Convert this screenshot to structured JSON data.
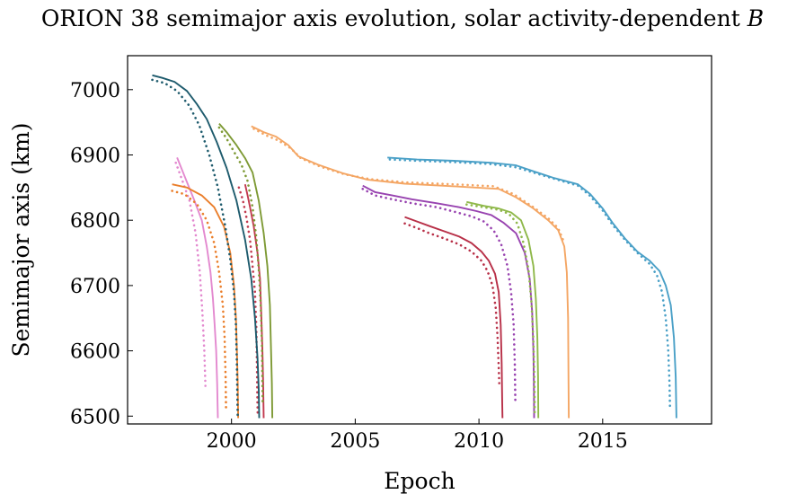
{
  "chart_data": {
    "type": "line",
    "title_main": "ORION 38 semimajor axis evolution, solar activity-dependent ",
    "title_var": "B",
    "xlabel": "Epoch",
    "ylabel": "Semimajor axis (km)",
    "xlim": [
      1995.8,
      2019.4
    ],
    "ylim": [
      6488,
      7052
    ],
    "xticks": [
      2000,
      2005,
      2010,
      2015
    ],
    "yticks": [
      6500,
      6600,
      6700,
      6800,
      6900,
      7000
    ],
    "grid": false,
    "legend": "none",
    "series": [
      {
        "name": "pink-solid",
        "color": "#e389cf",
        "style": "solid",
        "points": [
          [
            1997.8,
            6896
          ],
          [
            1998.1,
            6868
          ],
          [
            1998.5,
            6830
          ],
          [
            1998.8,
            6800
          ],
          [
            1999.0,
            6760
          ],
          [
            1999.15,
            6720
          ],
          [
            1999.25,
            6680
          ],
          [
            1999.32,
            6640
          ],
          [
            1999.38,
            6600
          ],
          [
            1999.42,
            6550
          ],
          [
            1999.45,
            6497
          ]
        ]
      },
      {
        "name": "pink-dotted",
        "color": "#e389cf",
        "style": "dotted",
        "points": [
          [
            1997.75,
            6888
          ],
          [
            1998.0,
            6862
          ],
          [
            1998.3,
            6830
          ],
          [
            1998.55,
            6780
          ],
          [
            1998.72,
            6720
          ],
          [
            1998.82,
            6660
          ],
          [
            1998.9,
            6600
          ],
          [
            1998.95,
            6540
          ]
        ]
      },
      {
        "name": "orange-solid",
        "color": "#ea7e2b",
        "style": "solid",
        "points": [
          [
            1997.6,
            6855
          ],
          [
            1998.2,
            6850
          ],
          [
            1998.8,
            6838
          ],
          [
            1999.3,
            6820
          ],
          [
            1999.7,
            6790
          ],
          [
            1999.95,
            6750
          ],
          [
            2000.1,
            6700
          ],
          [
            2000.18,
            6650
          ],
          [
            2000.22,
            6600
          ],
          [
            2000.25,
            6550
          ],
          [
            2000.27,
            6497
          ]
        ]
      },
      {
        "name": "orange-dotted",
        "color": "#ea7e2b",
        "style": "dotted",
        "points": [
          [
            1997.6,
            6845
          ],
          [
            1998.1,
            6840
          ],
          [
            1998.6,
            6825
          ],
          [
            1999.0,
            6800
          ],
          [
            1999.3,
            6765
          ],
          [
            1999.5,
            6720
          ],
          [
            1999.65,
            6670
          ],
          [
            1999.72,
            6620
          ],
          [
            1999.76,
            6560
          ],
          [
            1999.78,
            6510
          ]
        ]
      },
      {
        "name": "red-solid",
        "color": "#c23a4f",
        "style": "solid",
        "points": [
          [
            2000.55,
            6855
          ],
          [
            2000.65,
            6838
          ],
          [
            2000.75,
            6820
          ],
          [
            2000.9,
            6790
          ],
          [
            2001.05,
            6750
          ],
          [
            2001.15,
            6710
          ],
          [
            2001.2,
            6660
          ],
          [
            2001.25,
            6600
          ],
          [
            2001.28,
            6550
          ],
          [
            2001.3,
            6497
          ]
        ]
      },
      {
        "name": "red-dotted",
        "color": "#c23a4f",
        "style": "dotted",
        "points": [
          [
            2000.3,
            6850
          ],
          [
            2000.45,
            6832
          ],
          [
            2000.6,
            6805
          ],
          [
            2000.75,
            6770
          ],
          [
            2000.85,
            6730
          ],
          [
            2000.95,
            6690
          ],
          [
            2001.0,
            6640
          ],
          [
            2001.03,
            6580
          ],
          [
            2001.05,
            6520
          ],
          [
            2001.06,
            6500
          ]
        ]
      },
      {
        "name": "navy-solid",
        "color": "#1e5b6d",
        "style": "solid",
        "points": [
          [
            1996.8,
            7022
          ],
          [
            1997.2,
            7018
          ],
          [
            1997.7,
            7012
          ],
          [
            1998.2,
            6998
          ],
          [
            1998.6,
            6978
          ],
          [
            1999.0,
            6955
          ],
          [
            1999.4,
            6920
          ],
          [
            1999.8,
            6880
          ],
          [
            2000.2,
            6830
          ],
          [
            2000.55,
            6770
          ],
          [
            2000.8,
            6710
          ],
          [
            2000.95,
            6650
          ],
          [
            2001.05,
            6590
          ],
          [
            2001.1,
            6540
          ],
          [
            2001.12,
            6497
          ]
        ]
      },
      {
        "name": "navy-dotted",
        "color": "#1e5b6d",
        "style": "dotted",
        "points": [
          [
            1996.8,
            7015
          ],
          [
            1997.3,
            7010
          ],
          [
            1997.8,
            6998
          ],
          [
            1998.3,
            6975
          ],
          [
            1998.7,
            6945
          ],
          [
            1999.1,
            6900
          ],
          [
            1999.45,
            6850
          ],
          [
            1999.75,
            6790
          ],
          [
            1999.95,
            6740
          ],
          [
            2000.1,
            6690
          ],
          [
            2000.18,
            6640
          ],
          [
            2000.22,
            6580
          ],
          [
            2000.24,
            6520
          ],
          [
            2000.25,
            6500
          ]
        ]
      },
      {
        "name": "olive-solid",
        "color": "#7e9a35",
        "style": "solid",
        "points": [
          [
            1999.5,
            6948
          ],
          [
            1999.8,
            6935
          ],
          [
            2000.2,
            6915
          ],
          [
            2000.55,
            6895
          ],
          [
            2000.85,
            6873
          ],
          [
            2001.1,
            6830
          ],
          [
            2001.3,
            6780
          ],
          [
            2001.45,
            6730
          ],
          [
            2001.55,
            6670
          ],
          [
            2001.6,
            6600
          ],
          [
            2001.63,
            6550
          ],
          [
            2001.65,
            6497
          ]
        ]
      },
      {
        "name": "olive-dotted",
        "color": "#7e9a35",
        "style": "dotted",
        "points": [
          [
            1999.5,
            6942
          ],
          [
            1999.8,
            6925
          ],
          [
            2000.1,
            6905
          ],
          [
            2000.4,
            6885
          ],
          [
            2000.65,
            6860
          ],
          [
            2000.85,
            6820
          ],
          [
            2001.0,
            6775
          ],
          [
            2001.1,
            6725
          ],
          [
            2001.18,
            6670
          ],
          [
            2001.23,
            6610
          ],
          [
            2001.25,
            6550
          ],
          [
            2001.26,
            6520
          ]
        ]
      },
      {
        "name": "peach-solid",
        "color": "#f4a664",
        "style": "solid",
        "points": [
          [
            2000.8,
            6944
          ],
          [
            2001.3,
            6935
          ],
          [
            2001.8,
            6928
          ],
          [
            2002.3,
            6915
          ],
          [
            2002.7,
            6898
          ],
          [
            2003.5,
            6885
          ],
          [
            2004.5,
            6872
          ],
          [
            2005.5,
            6862
          ],
          [
            2007.0,
            6856
          ],
          [
            2009.0,
            6852
          ],
          [
            2010.8,
            6848
          ],
          [
            2011.5,
            6835
          ],
          [
            2012.2,
            6818
          ],
          [
            2012.8,
            6800
          ],
          [
            2013.2,
            6785
          ],
          [
            2013.45,
            6760
          ],
          [
            2013.55,
            6720
          ],
          [
            2013.6,
            6650
          ],
          [
            2013.62,
            6550
          ],
          [
            2013.63,
            6497
          ]
        ]
      },
      {
        "name": "peach-dotted",
        "color": "#f4a664",
        "style": "dotted",
        "points": [
          [
            2000.9,
            6940
          ],
          [
            2001.4,
            6930
          ],
          [
            2001.9,
            6922
          ],
          [
            2002.4,
            6910
          ],
          [
            2002.8,
            6895
          ],
          [
            2003.6,
            6882
          ],
          [
            2004.6,
            6870
          ],
          [
            2005.6,
            6863
          ],
          [
            2007.0,
            6858
          ],
          [
            2009.0,
            6855
          ],
          [
            2010.6,
            6852
          ],
          [
            2011.4,
            6840
          ],
          [
            2012.2,
            6820
          ],
          [
            2012.8,
            6803
          ],
          [
            2013.2,
            6788
          ],
          [
            2013.4,
            6770
          ]
        ]
      },
      {
        "name": "blue-solid",
        "color": "#4aa0c7",
        "style": "solid",
        "points": [
          [
            2006.3,
            6896
          ],
          [
            2007.5,
            6893
          ],
          [
            2009.0,
            6891
          ],
          [
            2010.5,
            6888
          ],
          [
            2011.5,
            6884
          ],
          [
            2012.2,
            6875
          ],
          [
            2013.0,
            6865
          ],
          [
            2014.0,
            6855
          ],
          [
            2014.5,
            6840
          ],
          [
            2015.0,
            6818
          ],
          [
            2015.4,
            6796
          ],
          [
            2015.9,
            6772
          ],
          [
            2016.4,
            6752
          ],
          [
            2016.9,
            6738
          ],
          [
            2017.3,
            6722
          ],
          [
            2017.55,
            6700
          ],
          [
            2017.75,
            6670
          ],
          [
            2017.88,
            6620
          ],
          [
            2017.95,
            6560
          ],
          [
            2017.98,
            6497
          ]
        ]
      },
      {
        "name": "blue-dotted",
        "color": "#4aa0c7",
        "style": "dotted",
        "points": [
          [
            2006.4,
            6893
          ],
          [
            2007.5,
            6891
          ],
          [
            2009.0,
            6889
          ],
          [
            2010.5,
            6886
          ],
          [
            2011.5,
            6881
          ],
          [
            2012.2,
            6873
          ],
          [
            2013.0,
            6864
          ],
          [
            2014.0,
            6853
          ],
          [
            2014.5,
            6837
          ],
          [
            2015.0,
            6815
          ],
          [
            2015.4,
            6793
          ],
          [
            2015.9,
            6770
          ],
          [
            2016.4,
            6750
          ],
          [
            2016.9,
            6733
          ],
          [
            2017.2,
            6715
          ],
          [
            2017.4,
            6690
          ],
          [
            2017.55,
            6650
          ],
          [
            2017.65,
            6600
          ],
          [
            2017.7,
            6550
          ],
          [
            2017.72,
            6515
          ]
        ]
      },
      {
        "name": "purple-solid",
        "color": "#9843b0",
        "style": "solid",
        "points": [
          [
            2005.3,
            6853
          ],
          [
            2005.8,
            6843
          ],
          [
            2006.5,
            6838
          ],
          [
            2007.3,
            6832
          ],
          [
            2008.3,
            6826
          ],
          [
            2009.2,
            6820
          ],
          [
            2009.9,
            6814
          ],
          [
            2010.5,
            6808
          ],
          [
            2011.0,
            6796
          ],
          [
            2011.5,
            6780
          ],
          [
            2011.85,
            6750
          ],
          [
            2012.05,
            6710
          ],
          [
            2012.15,
            6660
          ],
          [
            2012.2,
            6600
          ],
          [
            2012.22,
            6550
          ],
          [
            2012.23,
            6497
          ]
        ]
      },
      {
        "name": "purple-dotted",
        "color": "#9843b0",
        "style": "dotted",
        "points": [
          [
            2005.3,
            6848
          ],
          [
            2005.8,
            6838
          ],
          [
            2006.5,
            6832
          ],
          [
            2007.3,
            6826
          ],
          [
            2008.3,
            6820
          ],
          [
            2009.0,
            6813
          ],
          [
            2009.7,
            6806
          ],
          [
            2010.2,
            6798
          ],
          [
            2010.6,
            6784
          ],
          [
            2010.9,
            6763
          ],
          [
            2011.15,
            6730
          ],
          [
            2011.3,
            6690
          ],
          [
            2011.4,
            6640
          ],
          [
            2011.45,
            6580
          ],
          [
            2011.47,
            6520
          ]
        ]
      },
      {
        "name": "green-solid",
        "color": "#8fb84a",
        "style": "solid",
        "points": [
          [
            2009.5,
            6828
          ],
          [
            2010.2,
            6822
          ],
          [
            2010.8,
            6818
          ],
          [
            2011.3,
            6812
          ],
          [
            2011.7,
            6800
          ],
          [
            2012.0,
            6770
          ],
          [
            2012.2,
            6730
          ],
          [
            2012.3,
            6680
          ],
          [
            2012.36,
            6620
          ],
          [
            2012.39,
            6560
          ],
          [
            2012.4,
            6497
          ]
        ]
      },
      {
        "name": "green-dotted",
        "color": "#8fb84a",
        "style": "dotted",
        "points": [
          [
            2009.5,
            6824
          ],
          [
            2010.2,
            6820
          ],
          [
            2010.8,
            6816
          ],
          [
            2011.2,
            6810
          ],
          [
            2011.55,
            6795
          ],
          [
            2011.8,
            6765
          ],
          [
            2012.0,
            6725
          ],
          [
            2012.12,
            6675
          ],
          [
            2012.2,
            6615
          ],
          [
            2012.24,
            6555
          ],
          [
            2012.25,
            6505
          ]
        ]
      },
      {
        "name": "crimson-solid",
        "color": "#b83048",
        "style": "solid",
        "points": [
          [
            2007.0,
            6805
          ],
          [
            2007.5,
            6798
          ],
          [
            2008.0,
            6791
          ],
          [
            2008.6,
            6783
          ],
          [
            2009.2,
            6775
          ],
          [
            2009.7,
            6765
          ],
          [
            2010.1,
            6752
          ],
          [
            2010.4,
            6738
          ],
          [
            2010.65,
            6718
          ],
          [
            2010.8,
            6690
          ],
          [
            2010.88,
            6640
          ],
          [
            2010.92,
            6580
          ],
          [
            2010.94,
            6520
          ],
          [
            2010.95,
            6497
          ]
        ]
      },
      {
        "name": "crimson-dotted",
        "color": "#b83048",
        "style": "dotted",
        "points": [
          [
            2007.0,
            6795
          ],
          [
            2007.5,
            6788
          ],
          [
            2008.0,
            6780
          ],
          [
            2008.6,
            6772
          ],
          [
            2009.2,
            6763
          ],
          [
            2009.7,
            6752
          ],
          [
            2010.1,
            6738
          ],
          [
            2010.35,
            6722
          ],
          [
            2010.55,
            6700
          ],
          [
            2010.68,
            6665
          ],
          [
            2010.75,
            6620
          ],
          [
            2010.8,
            6575
          ],
          [
            2010.82,
            6550
          ]
        ]
      }
    ]
  }
}
